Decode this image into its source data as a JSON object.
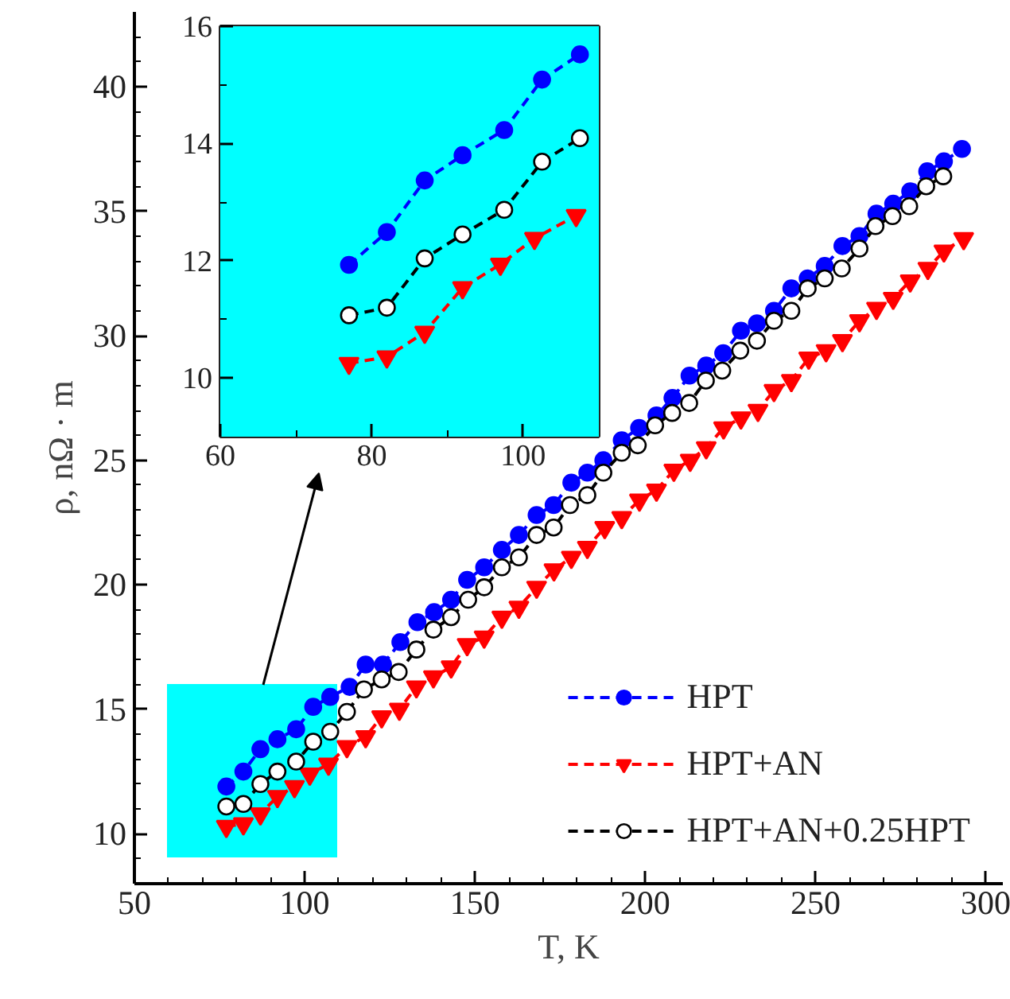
{
  "chart_data": [
    {
      "type": "line",
      "xlabel": "T, K",
      "ylabel": "ρ, nΩ · m",
      "xlim": [
        50,
        305
      ],
      "ylim": [
        8,
        43
      ],
      "xticks": [
        50,
        {
          "value": 60,
          "label": null
        },
        {
          "value": 70,
          "label": null
        },
        {
          "value": 80,
          "label": null
        },
        {
          "value": 90,
          "label": null
        },
        100,
        {
          "value": 110,
          "label": null
        },
        {
          "value": 120,
          "label": null
        },
        {
          "value": 130,
          "label": null
        },
        {
          "value": 140,
          "label": null
        },
        150,
        {
          "value": 160,
          "label": null
        },
        {
          "value": 170,
          "label": null
        },
        {
          "value": 180,
          "label": null
        },
        {
          "value": 190,
          "label": null
        },
        200,
        {
          "value": 210,
          "label": null
        },
        {
          "value": 220,
          "label": null
        },
        {
          "value": 230,
          "label": null
        },
        {
          "value": 240,
          "label": null
        },
        250,
        {
          "value": 260,
          "label": null
        },
        {
          "value": 270,
          "label": null
        },
        {
          "value": 280,
          "label": null
        },
        {
          "value": 290,
          "label": null
        },
        300
      ],
      "yticks": [
        {
          "value": 9,
          "label": null
        },
        10,
        {
          "value": 11,
          "label": null
        },
        {
          "value": 12,
          "label": null
        },
        {
          "value": 13,
          "label": null
        },
        {
          "value": 14,
          "label": null
        },
        15,
        {
          "value": 16,
          "label": null
        },
        {
          "value": 17,
          "label": null
        },
        {
          "value": 18,
          "label": null
        },
        {
          "value": 19,
          "label": null
        },
        20,
        {
          "value": 21,
          "label": null
        },
        {
          "value": 22,
          "label": null
        },
        {
          "value": 23,
          "label": null
        },
        {
          "value": 24,
          "label": null
        },
        25,
        {
          "value": 26,
          "label": null
        },
        {
          "value": 27,
          "label": null
        },
        {
          "value": 28,
          "label": null
        },
        {
          "value": 29,
          "label": null
        },
        30,
        {
          "value": 31,
          "label": null
        },
        {
          "value": 32,
          "label": null
        },
        {
          "value": 33,
          "label": null
        },
        {
          "value": 34,
          "label": null
        },
        35,
        {
          "value": 36,
          "label": null
        },
        {
          "value": 37,
          "label": null
        },
        {
          "value": 38,
          "label": null
        },
        {
          "value": 39,
          "label": null
        },
        40,
        {
          "value": 41,
          "label": null
        },
        {
          "value": 42,
          "label": null
        }
      ],
      "grid": false,
      "legend": "bottom right",
      "line_style": "dashed",
      "series": [
        {
          "name": "HPT",
          "color": "#0000ff",
          "marker": "circle",
          "x": [
            77,
            82,
            87,
            92,
            97.5,
            102.5,
            107.5,
            113.2,
            117.9,
            123.0,
            128.1,
            133.1,
            138,
            143,
            147.7,
            152.7,
            157.9,
            162.9,
            168.1,
            173.1,
            178.3,
            183,
            187.7,
            193.1,
            198.2,
            203.3,
            208,
            213,
            217.9,
            222.9,
            228.1,
            232.8,
            237.8,
            242.9,
            247.7,
            252.7,
            257.9,
            262.9,
            267.9,
            272.8,
            277.8,
            282.8,
            287.7,
            293
          ],
          "values": [
            11.9,
            12.5,
            13.4,
            13.8,
            14.2,
            15.1,
            15.5,
            15.9,
            16.8,
            16.8,
            17.7,
            18.5,
            18.9,
            19.4,
            20.2,
            20.7,
            21.4,
            22.0,
            22.8,
            23.2,
            24.1,
            24.5,
            25.0,
            25.8,
            26.3,
            26.8,
            27.5,
            28.4,
            28.8,
            29.3,
            30.2,
            30.5,
            31.0,
            31.9,
            32.3,
            32.8,
            33.6,
            34.0,
            34.9,
            35.3,
            35.8,
            36.6,
            37.0,
            37.5
          ]
        },
        {
          "name": "HPT+AN",
          "color": "#ff0000",
          "marker": "triangle",
          "x": [
            77,
            82,
            87,
            92,
            97,
            101.5,
            107,
            112.4,
            117.9,
            122.6,
            127.8,
            132.8,
            137.8,
            143,
            147.7,
            152.7,
            157.9,
            162.9,
            168.1,
            173.2,
            178.3,
            183,
            188.1,
            193.1,
            198.3,
            203.3,
            208.4,
            213.2,
            217.9,
            223,
            228.1,
            233.1,
            237.8,
            242.9,
            248,
            253.1,
            257.9,
            262.9,
            267.9,
            272.8,
            277.8,
            283,
            287.7,
            293.5
          ],
          "values": [
            10.3,
            10.4,
            10.8,
            11.5,
            11.9,
            12.4,
            12.8,
            13.5,
            13.9,
            14.7,
            15.0,
            15.9,
            16.3,
            16.7,
            17.6,
            17.9,
            18.7,
            19.1,
            19.9,
            20.6,
            21.1,
            21.5,
            22.3,
            22.7,
            23.4,
            23.8,
            24.6,
            25.0,
            25.5,
            26.3,
            26.7,
            27.0,
            27.8,
            28.2,
            29.1,
            29.4,
            29.8,
            30.6,
            31.1,
            31.5,
            32.2,
            32.7,
            33.4,
            33.9
          ]
        },
        {
          "name": "HPT+AN+0.25HPT",
          "color": "#000000",
          "marker": "circle",
          "colors": [
            "#ffffff",
            "#ffffff",
            "#ffffff",
            "#ffffff",
            "#ffffff",
            "#ffffff",
            "#ffffff",
            "#ffffff",
            "#ffffff",
            "#ffffff",
            "#ffffff",
            "#ffffff",
            "#ffffff",
            "#ffffff",
            "#ffffff",
            "#ffffff",
            "#ffffff",
            "#ffffff",
            "#ffffff",
            "#ffffff",
            "#ffffff",
            "#ffffff",
            "#ffffff",
            "#ffffff",
            "#ffffff",
            "#ffffff",
            "#ffffff",
            "#ffffff",
            "#ffffff",
            "#ffffff",
            "#ffffff",
            "#ffffff",
            "#ffffff",
            "#ffffff",
            "#ffffff",
            "#ffffff",
            "#ffffff",
            "#ffffff",
            "#ffffff",
            "#ffffff",
            "#ffffff",
            "#ffffff",
            "#ffffff"
          ],
          "x": [
            77,
            82,
            87,
            92,
            97.5,
            102.5,
            107.5,
            112.4,
            117.4,
            122.6,
            127.6,
            132.8,
            137.8,
            143,
            148,
            152.7,
            157.9,
            162.9,
            168.1,
            173.1,
            177.9,
            183,
            187.7,
            193.1,
            197.8,
            202.9,
            207.9,
            212.9,
            217.8,
            222.6,
            227.9,
            232.8,
            237.8,
            242.9,
            247.7,
            252.7,
            257.7,
            262.9,
            267.6,
            272.6,
            277.5,
            282.5,
            287.5
          ],
          "values": [
            11.1,
            11.2,
            12.0,
            12.5,
            12.9,
            13.7,
            14.1,
            14.9,
            15.8,
            16.2,
            16.5,
            17.4,
            18.2,
            18.7,
            19.4,
            19.9,
            20.7,
            21.1,
            22.0,
            22.3,
            23.2,
            23.6,
            24.5,
            25.3,
            25.6,
            26.4,
            26.9,
            27.3,
            28.2,
            28.6,
            29.4,
            29.8,
            30.6,
            31.0,
            31.9,
            32.3,
            32.7,
            33.5,
            34.4,
            34.8,
            35.2,
            36.0,
            36.4
          ]
        }
      ]
    },
    {
      "type": "line",
      "xlim": [
        60,
        110
      ],
      "ylim": [
        9,
        16
      ],
      "xticks": [
        60,
        {
          "value": 70,
          "label": null
        },
        80,
        {
          "value": 90,
          "label": null
        },
        100
      ],
      "yticks": [
        10,
        {
          "value": 11,
          "label": null
        },
        12,
        {
          "value": 13,
          "label": null
        },
        14,
        {
          "value": 15,
          "label": null
        },
        16
      ],
      "grid": false,
      "line_style": "dashed",
      "bands": [
        {
          "axis": "x",
          "from": 60,
          "to": 110,
          "color": "#00ffff"
        }
      ],
      "series": [
        {
          "color": "#0000ff",
          "marker": "circle",
          "x": [
            77,
            82,
            87,
            92,
            97.5,
            102.5,
            107.5
          ],
          "values": [
            11.93,
            12.49,
            13.37,
            13.8,
            14.23,
            15.09,
            15.52
          ]
        },
        {
          "color": "#ff0000",
          "marker": "triangle",
          "x": [
            77,
            82,
            87,
            92,
            97,
            101.5,
            107
          ],
          "values": [
            10.25,
            10.36,
            10.78,
            11.54,
            11.94,
            12.38,
            12.77
          ]
        },
        {
          "color": "#000000",
          "marker": "circle",
          "colors": [
            "#ffffff",
            "#ffffff",
            "#ffffff",
            "#ffffff",
            "#ffffff",
            "#ffffff",
            "#ffffff"
          ],
          "x": [
            77,
            82,
            87,
            92,
            97.5,
            102.5,
            107.5
          ],
          "values": [
            11.07,
            11.2,
            12.04,
            12.45,
            12.87,
            13.69,
            14.09
          ]
        }
      ]
    }
  ]
}
